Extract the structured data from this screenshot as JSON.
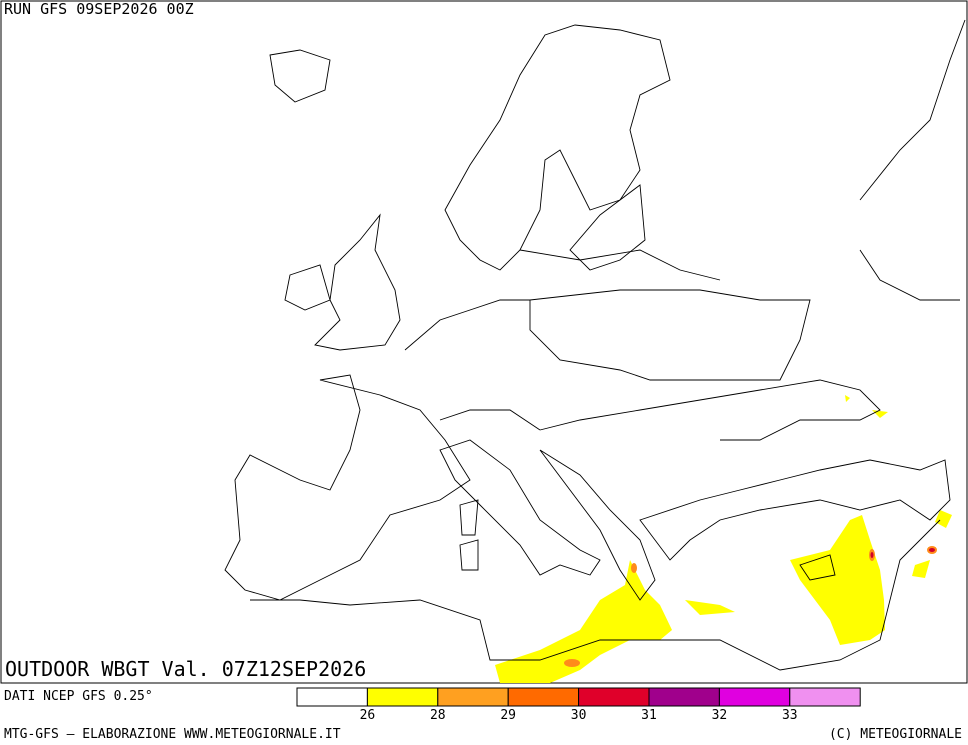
{
  "header": {
    "run": "RUN GFS 09SEP2026 00Z"
  },
  "map": {
    "title": "OUTDOOR WBGT Val. 07Z12SEP2026"
  },
  "legend": {
    "source": "DATI NCEP GFS 0.25°",
    "colors": [
      "#ffffff",
      "#ffff00",
      "#ffa020",
      "#ff6a00",
      "#e0002a",
      "#a0008c",
      "#e000e0",
      "#f090f0"
    ],
    "ticks": [
      26,
      28,
      29,
      30,
      31,
      32,
      33
    ]
  },
  "footer": {
    "left": "MTG-GFS — ELABORAZIONE WWW.METEOGIORNALE.IT",
    "right": "(C) METEOGIORNALE"
  }
}
